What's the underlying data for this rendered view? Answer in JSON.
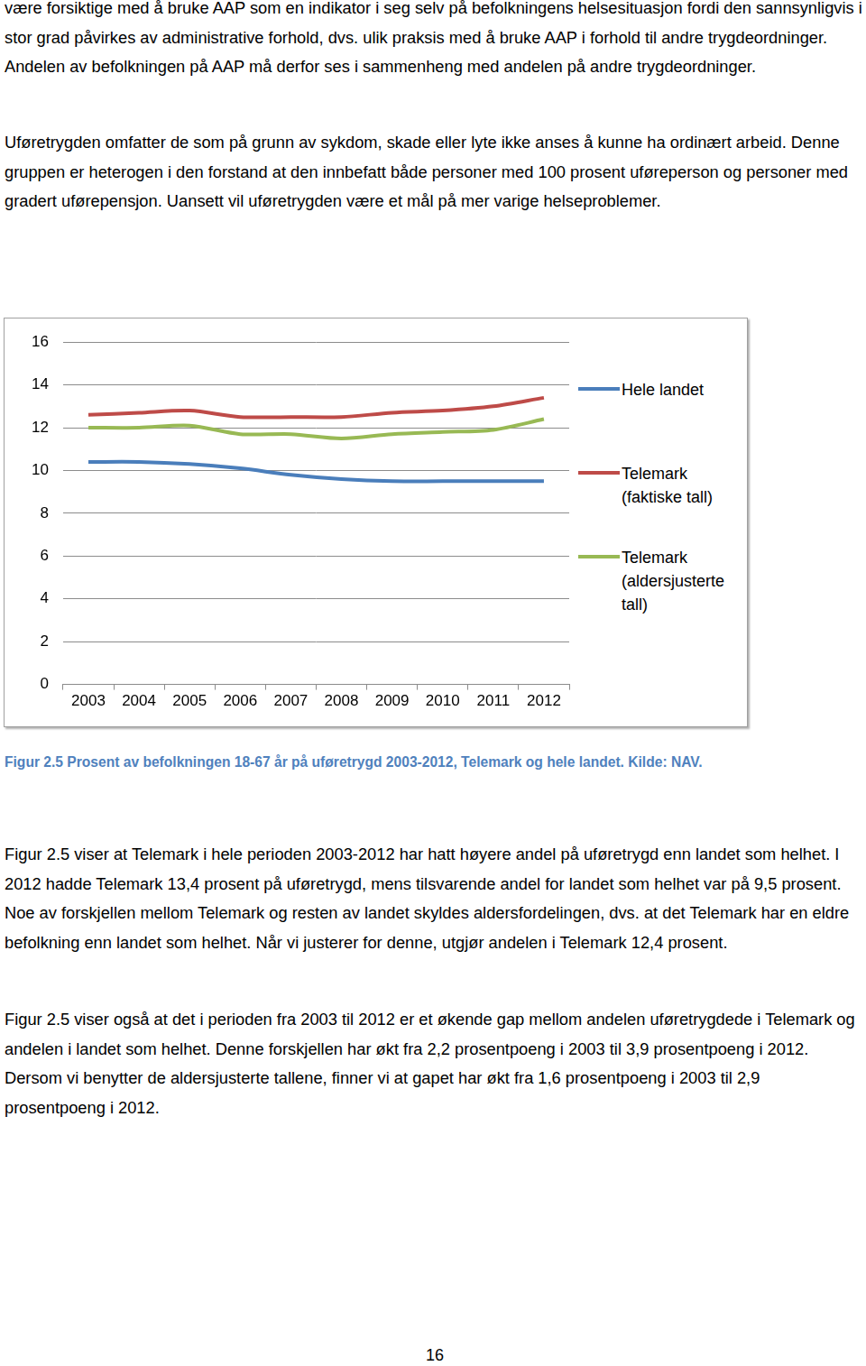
{
  "paragraphs_top": [
    "være forsiktige med å bruke AAP som en indikator i seg selv på befolkningens helsesituasjon fordi den sannsynligvis i stor grad påvirkes av administrative forhold, dvs. ulik praksis med å bruke AAP i forhold til andre trygdeordninger. Andelen av befolkningen på AAP må derfor ses i sammenheng med andelen på andre trygdeordninger.",
    "Uføretrygden omfatter de som på grunn av sykdom, skade eller lyte ikke anses å kunne ha ordinært arbeid. Denne gruppen er heterogen i den forstand at den innbefatt både personer med 100 prosent uføreperson og personer med gradert uførepensjon. Uansett vil uføretrygden være et mål på mer varige helseproblemer."
  ],
  "chart_data": {
    "type": "line",
    "categories": [
      "2003",
      "2004",
      "2005",
      "2006",
      "2007",
      "2008",
      "2009",
      "2010",
      "2011",
      "2012"
    ],
    "series": [
      {
        "name": "Hele landet",
        "color": "#4a7ebb",
        "values": [
          10.4,
          10.4,
          10.3,
          10.1,
          9.8,
          9.6,
          9.5,
          9.5,
          9.5,
          9.5
        ]
      },
      {
        "name": "Telemark (faktiske tall)",
        "color": "#be4b48",
        "values": [
          12.6,
          12.7,
          12.8,
          12.5,
          12.5,
          12.5,
          12.7,
          12.8,
          13.0,
          13.4
        ]
      },
      {
        "name": "Telemark (aldersjusterte tall)",
        "color": "#98b954",
        "values": [
          12.0,
          12.0,
          12.1,
          11.7,
          11.7,
          11.5,
          11.7,
          11.8,
          11.9,
          12.4
        ]
      }
    ],
    "ylim": [
      0,
      16
    ],
    "yticks": [
      0,
      2,
      4,
      6,
      8,
      10,
      12,
      14,
      16
    ],
    "grid": true,
    "legend": "right"
  },
  "caption": "Figur 2.5 Prosent av befolkningen 18-67 år på uføretrygd 2003-2012, Telemark og hele landet. Kilde: NAV.",
  "paragraphs_bottom": [
    "Figur 2.5 viser at Telemark i hele perioden 2003-2012 har hatt høyere andel på uføretrygd enn landet som helhet. I 2012 hadde Telemark 13,4 prosent på uføretrygd, mens tilsvarende andel for landet som helhet var på 9,5 prosent. Noe av forskjellen mellom Telemark og resten av landet skyldes aldersfordelingen, dvs. at det Telemark har en eldre befolkning enn landet som helhet. Når vi justerer for denne, utgjør andelen i Telemark 12,4 prosent.",
    "Figur 2.5 viser også at det i perioden fra 2003 til 2012 er et økende gap mellom andelen uføretrygdede i Telemark og andelen i landet som helhet. Denne forskjellen har økt fra 2,2 prosentpoeng i 2003 til 3,9 prosentpoeng i 2012. Dersom vi benytter de aldersjusterte tallene, finner vi at gapet har økt fra 1,6 prosentpoeng i 2003 til 2,9 prosentpoeng i 2012."
  ],
  "page_number": "16"
}
